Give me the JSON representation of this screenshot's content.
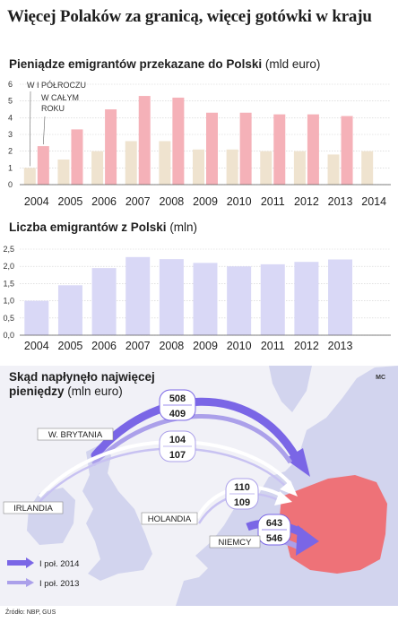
{
  "title": "Więcej Polaków za granicą, więcej gotówki w kraju",
  "colors": {
    "half_year": "#efe3cf",
    "full_year": "#f5b1b8",
    "migrants": "#d9d8f6",
    "map_land": "#d2d4ee",
    "map_sea": "#f1f1f7",
    "poland": "#ee7278",
    "arrow_2014": "#7a66e6",
    "arrow_2013": "#aba0ea"
  },
  "chart_data": [
    {
      "type": "bar",
      "title": "Pieniądze emigrantów przekazane do Polski",
      "unit": "(mld euro)",
      "categories": [
        "2004",
        "2005",
        "2006",
        "2007",
        "2008",
        "2009",
        "2010",
        "2011",
        "2012",
        "2013",
        "2014"
      ],
      "y_ticks": [
        "0",
        "1",
        "2",
        "3",
        "4",
        "5",
        "6"
      ],
      "ylim": [
        0,
        6
      ],
      "grid": true,
      "series": [
        {
          "name": "W I PÓŁROCZU",
          "values": [
            1.0,
            1.5,
            2.0,
            2.6,
            2.6,
            2.1,
            2.1,
            2.0,
            2.0,
            1.8,
            2.0
          ]
        },
        {
          "name": "W CAŁYM ROKU",
          "values": [
            2.3,
            3.3,
            4.5,
            5.3,
            5.2,
            4.3,
            4.3,
            4.2,
            4.2,
            4.1,
            null
          ]
        }
      ]
    },
    {
      "type": "bar",
      "title": "Liczba emigrantów z Polski",
      "unit": "(mln)",
      "categories": [
        "2004",
        "2005",
        "2006",
        "2007",
        "2008",
        "2009",
        "2010",
        "2011",
        "2012",
        "2013"
      ],
      "y_ticks": [
        "0,0",
        "0,5",
        "1,0",
        "1,5",
        "2,0",
        "2,5"
      ],
      "ylim": [
        0,
        2.5
      ],
      "grid": true,
      "values": [
        1.0,
        1.45,
        1.95,
        2.27,
        2.21,
        2.1,
        2.0,
        2.06,
        2.13,
        2.2
      ]
    },
    {
      "type": "flow-map",
      "title": "Skąd napłynęło najwięcej pieniędzy",
      "unit": "(mln euro)",
      "legend": [
        {
          "label": "I poł. 2014"
        },
        {
          "label": "I poł. 2013"
        }
      ],
      "flows": [
        {
          "country": "W. BRYTANIA",
          "v2014": "508",
          "v2013": "409"
        },
        {
          "country": "IRLANDIA",
          "v2014": "104",
          "v2013": "107"
        },
        {
          "country": "HOLANDIA",
          "v2014": "110",
          "v2013": "109"
        },
        {
          "country": "NIEMCY",
          "v2014": "643",
          "v2013": "546"
        }
      ]
    }
  ],
  "source": "Źródło: NBP, GUS",
  "author": "MC"
}
